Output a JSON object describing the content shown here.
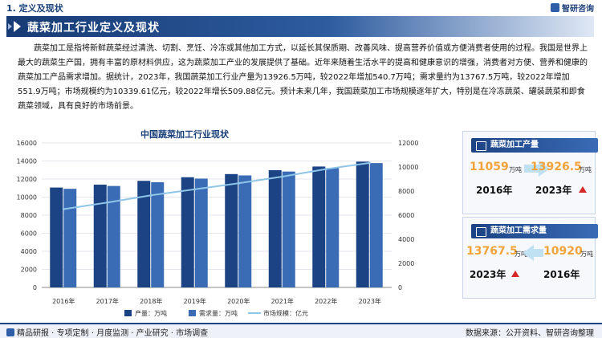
{
  "header": {
    "section": "1. 定义及现状",
    "brand": "智研咨询",
    "title": "蔬菜加工行业定义及现状"
  },
  "body_text": "蔬菜加工是指将新鲜蔬菜经过清洗、切割、烹饪、冷冻或其他加工方式，以延长其保质期、改善风味、提高营养价值或方便消费者使用的过程。我国是世界上最大的蔬菜生产国，拥有丰富的原材料供应，这为蔬菜加工产业的发展提供了基础。近年来随着生活水平的提高和健康意识的增强，消费者对方便、营养和健康的蔬菜加工产品需求增加。据统计，2023年，我国蔬菜加工行业产量为13926.5万吨，较2022年增加540.7万吨；需求量约为13767.5万吨，较2022年增加551.9万吨；市场规模约为10339.61亿元，较2022年增长509.88亿元。预计未来几年，我国蔬菜加工市场规模逐年扩大，特别是在冷冻蔬菜、罐装蔬菜和即食蔬菜领域，具有良好的市场前景。",
  "chart_data": {
    "type": "bar",
    "title": "中国蔬菜加工行业现状",
    "categories": [
      "2016年",
      "2017年",
      "2018年",
      "2019年",
      "2020年",
      "2021年",
      "2022年",
      "2023年"
    ],
    "series": [
      {
        "name": "产量：万吨",
        "type": "bar",
        "axis": "left",
        "values": [
          11059,
          11380,
          11800,
          12200,
          12550,
          12980,
          13385.8,
          13926.5
        ]
      },
      {
        "name": "需求量：万吨",
        "type": "bar",
        "axis": "left",
        "values": [
          10920,
          11230,
          11650,
          12050,
          12400,
          12830,
          13215.6,
          13767.5
        ]
      },
      {
        "name": "市场规模：亿元",
        "type": "line",
        "axis": "right",
        "values": [
          6500,
          7050,
          7650,
          8150,
          8650,
          9200,
          9829.73,
          10339.61
        ]
      }
    ],
    "y_left": {
      "min": 0,
      "max": 16000,
      "ticks": [
        "0",
        "2000",
        "4000",
        "6000",
        "8000",
        "10000",
        "12000",
        "14000",
        "16000"
      ]
    },
    "y_right": {
      "min": 0,
      "max": 12000,
      "ticks": [
        "0",
        "2000",
        "4000",
        "6000",
        "8000",
        "10000",
        "12000"
      ]
    },
    "legend_position": "bottom",
    "colors": {
      "production": "#1c4384",
      "demand": "#3a6bb5",
      "market": "#8ec5e8"
    }
  },
  "panel_output": {
    "title": "蔬菜加工产量",
    "from_value": "11059",
    "from_unit": "万吨",
    "from_year": "2016年",
    "to_value": "13926.5",
    "to_unit": "万吨",
    "to_year": "2023年"
  },
  "panel_demand": {
    "title": "蔬菜加工需求量",
    "from_value": "13767.5",
    "from_unit": "万吨",
    "from_year": "2023年",
    "to_value": "10920",
    "to_unit": "万吨",
    "to_year": "2016年"
  },
  "footer": {
    "left": "精品研报 · 专项定制 · 月度监测 · 产业研究 · 市场调查",
    "right": "数据来源：公开资料、智研咨询整理"
  }
}
